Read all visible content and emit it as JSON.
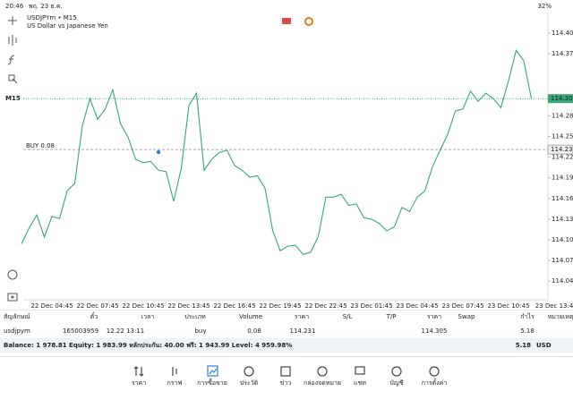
{
  "status_bar": {
    "time": "20:46",
    "date": "พฤ. 23 ธ.ค.",
    "battery": "32%"
  },
  "chart_data": {
    "type": "line",
    "title": "USDJPYm • M15",
    "subtitle": "US Dollar vs Japanese Yen",
    "timeframe": "M15",
    "color": "#3aa57a",
    "categories": [
      null,
      null,
      null,
      null,
      "22 Dec 04:45",
      null,
      null,
      null,
      null,
      null,
      "22 Dec 07:45",
      null,
      null,
      null,
      null,
      null,
      "22 Dec 10:45",
      null,
      null,
      null,
      null,
      null,
      "22 Dec 13:45",
      null,
      null,
      null,
      null,
      null,
      "22 Dec 16:45",
      null,
      null,
      null,
      null,
      null,
      "22 Dec 19:45",
      null,
      null,
      null,
      null,
      null,
      "22 Dec 22:45",
      null,
      null,
      null,
      null,
      null,
      "23 Dec 01:45",
      null,
      null,
      null,
      null,
      null,
      "23 Dec 04:45",
      null,
      null,
      null,
      null,
      null,
      "23 Dec 07:45",
      null,
      null,
      null,
      null,
      null,
      "23 Dec 10:45",
      null,
      null,
      null,
      null,
      null,
      "23 Dec 13:4"
    ],
    "values": [
      114.094,
      114.117,
      114.136,
      114.104,
      114.134,
      114.131,
      114.171,
      114.182,
      114.266,
      114.305,
      114.275,
      114.29,
      114.318,
      114.269,
      114.249,
      114.217,
      114.212,
      114.214,
      114.201,
      114.199,
      114.156,
      114.204,
      114.295,
      114.313,
      114.201,
      114.217,
      114.227,
      114.23,
      114.208,
      114.201,
      114.191,
      114.193,
      114.175,
      114.114,
      114.084,
      114.091,
      114.092,
      114.079,
      114.082,
      114.105,
      114.162,
      114.162,
      114.166,
      114.15,
      114.152,
      114.132,
      114.13,
      114.124,
      114.113,
      114.119,
      114.147,
      114.141,
      114.162,
      114.171,
      114.206,
      114.23,
      114.253,
      114.287,
      114.29,
      114.316,
      114.301,
      114.313,
      114.305,
      114.292,
      114.331,
      114.375,
      114.36,
      114.305,
      null,
      null,
      null
    ],
    "ylim": [
      114.013,
      114.43
    ],
    "yticks": [
      {
        "value": 114.4,
        "label": "114.400"
      },
      {
        "value": 114.37,
        "label": "114.370"
      },
      {
        "value": 114.28,
        "label": "114.280"
      },
      {
        "value": 114.25,
        "label": "114.250"
      },
      {
        "value": 114.22,
        "label": "114.220"
      },
      {
        "value": 114.19,
        "label": "114.190"
      },
      {
        "value": 114.16,
        "label": "114.160"
      },
      {
        "value": 114.13,
        "label": "114.130"
      },
      {
        "value": 114.1,
        "label": "114.100"
      },
      {
        "value": 114.07,
        "label": "114.070"
      },
      {
        "value": 114.04,
        "label": "114.040"
      }
    ],
    "current_price": 114.305,
    "order_line": {
      "label": "BUY 0.08",
      "price": 114.231
    }
  },
  "trade_table": {
    "headers": [
      "สัญลักษณ์",
      "ตั๋ว",
      "เวลา",
      "ประเภท",
      "Volume",
      "ราคา",
      "S/L",
      "T/P",
      "ราคา",
      "Swap",
      "กำไร",
      "หมายเหตุ"
    ],
    "row": [
      "usdjpym",
      "165003959",
      "12.22 13:11",
      "buy",
      "0.08",
      "114.231",
      "114.305",
      "5.18"
    ],
    "balance": "Balance: 1 978.81 Equity: 1 983.99 หลักประกัน: 40.00 ฟรี: 1 943.99 Level: 4 959.98%",
    "total_profit": "5.18",
    "currency": "USD"
  },
  "nav": [
    {
      "label": "ราคา"
    },
    {
      "label": "กราฟ"
    },
    {
      "label": "การซื้อขาย",
      "active": true
    },
    {
      "label": "ประวัติ"
    },
    {
      "label": "ข่าว"
    },
    {
      "label": "กล่องจดหมาย"
    },
    {
      "label": "แชท"
    },
    {
      "label": "บัญชี"
    },
    {
      "label": "การตั้งค่า"
    }
  ]
}
